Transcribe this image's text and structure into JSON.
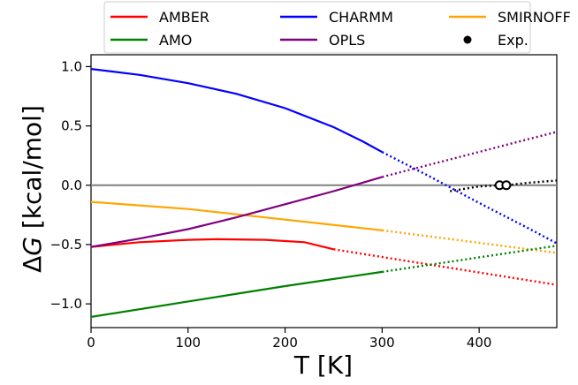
{
  "chart_data": {
    "type": "line",
    "title": "",
    "xlabel": "T [K]",
    "ylabel_prefix": "Δ",
    "ylabel_var": "G",
    "ylabel_suffix": " [kcal/mol]",
    "xlim": [
      0,
      480
    ],
    "ylim": [
      -1.2,
      1.1
    ],
    "xticks": [
      0,
      100,
      200,
      300,
      400
    ],
    "yticks": [
      -1.0,
      -0.5,
      0.0,
      0.5,
      1.0
    ],
    "ytick_labels": [
      "−1.0",
      "−0.5",
      "0.0",
      "0.5",
      "1.0"
    ],
    "grid": false,
    "legend_position": "top-center, outside plot",
    "reference_line": {
      "y": 0.0,
      "color": "#808080"
    },
    "series": [
      {
        "name": "AMBER",
        "color": "#ff0000",
        "solid": [
          [
            0,
            -0.52
          ],
          [
            50,
            -0.48
          ],
          [
            100,
            -0.46
          ],
          [
            130,
            -0.455
          ],
          [
            180,
            -0.46
          ],
          [
            220,
            -0.48
          ],
          [
            250,
            -0.54
          ]
        ],
        "dotted": [
          [
            250,
            -0.54
          ],
          [
            480,
            -0.84
          ]
        ]
      },
      {
        "name": "CHARMM",
        "color": "#0000ff",
        "solid": [
          [
            0,
            0.98
          ],
          [
            50,
            0.93
          ],
          [
            100,
            0.86
          ],
          [
            150,
            0.77
          ],
          [
            200,
            0.65
          ],
          [
            250,
            0.49
          ],
          [
            280,
            0.37
          ],
          [
            300,
            0.28
          ]
        ],
        "dotted": [
          [
            300,
            0.28
          ],
          [
            350,
            0.07
          ],
          [
            400,
            -0.15
          ],
          [
            450,
            -0.36
          ],
          [
            480,
            -0.49
          ]
        ]
      },
      {
        "name": "SMIRNOFF",
        "color": "#ffa500",
        "solid": [
          [
            0,
            -0.14
          ],
          [
            100,
            -0.2
          ],
          [
            200,
            -0.29
          ],
          [
            300,
            -0.38
          ]
        ],
        "dotted": [
          [
            300,
            -0.38
          ],
          [
            480,
            -0.57
          ]
        ]
      },
      {
        "name": "AMO",
        "color": "#008000",
        "solid": [
          [
            0,
            -1.11
          ],
          [
            100,
            -0.98
          ],
          [
            200,
            -0.85
          ],
          [
            300,
            -0.73
          ]
        ],
        "dotted": [
          [
            300,
            -0.73
          ],
          [
            480,
            -0.51
          ]
        ]
      },
      {
        "name": "OPLS",
        "color": "#800080",
        "solid": [
          [
            0,
            -0.52
          ],
          [
            50,
            -0.45
          ],
          [
            100,
            -0.37
          ],
          [
            150,
            -0.27
          ],
          [
            200,
            -0.16
          ],
          [
            250,
            -0.05
          ],
          [
            300,
            0.07
          ]
        ],
        "dotted": [
          [
            300,
            0.07
          ],
          [
            480,
            0.45
          ]
        ]
      },
      {
        "name": "Exp.",
        "color": "#000000",
        "marker": "circle",
        "points": [
          [
            421,
            0.0
          ],
          [
            428,
            0.0
          ]
        ],
        "dotted": [
          [
            370,
            -0.05
          ],
          [
            400,
            -0.01
          ],
          [
            421,
            0.0
          ],
          [
            428,
            0.0
          ],
          [
            450,
            0.02
          ],
          [
            480,
            0.04
          ]
        ]
      }
    ],
    "legend": [
      {
        "name": "AMBER",
        "color": "#ff0000",
        "marker": "line"
      },
      {
        "name": "CHARMM",
        "color": "#0000ff",
        "marker": "line"
      },
      {
        "name": "SMIRNOFF",
        "color": "#ffa500",
        "marker": "line"
      },
      {
        "name": "AMO",
        "color": "#008000",
        "marker": "line"
      },
      {
        "name": "OPLS",
        "color": "#800080",
        "marker": "line"
      },
      {
        "name": "Exp.",
        "color": "#000000",
        "marker": "circle"
      }
    ]
  }
}
